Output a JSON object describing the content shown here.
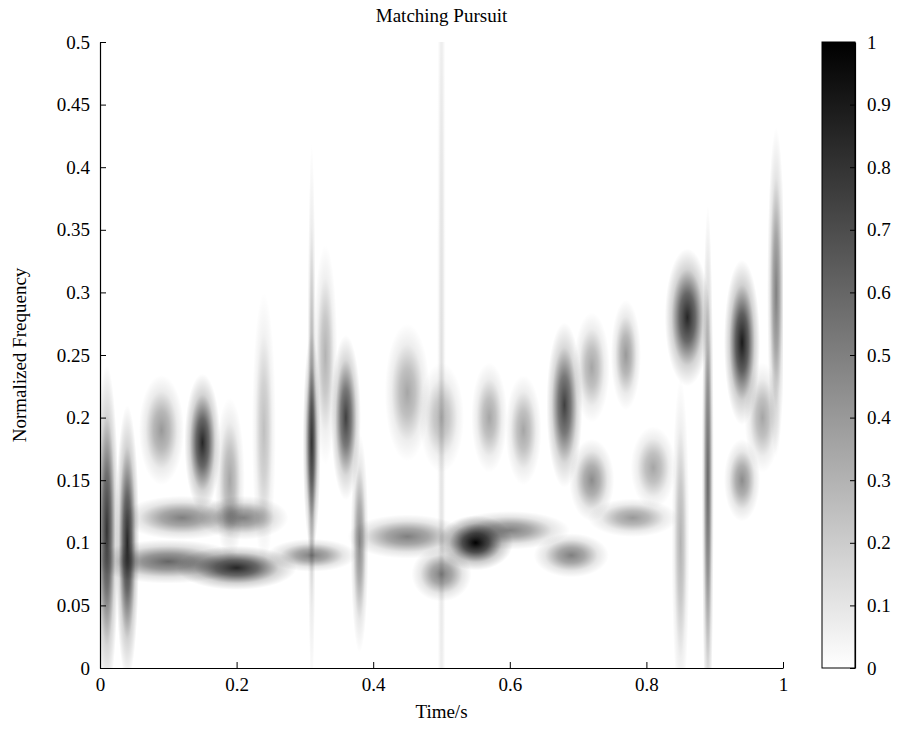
{
  "chart_data": {
    "type": "time_frequency",
    "title": "Matching Pursuit",
    "x_label": "Time/s",
    "y_label": "Normalized Frequency",
    "xlim": [
      0,
      1
    ],
    "xticks": [
      0,
      0.2,
      0.4,
      0.6,
      0.8,
      1
    ],
    "ylim": [
      0,
      0.5
    ],
    "yticks": [
      0,
      0.05,
      0.1,
      0.15,
      0.2,
      0.25,
      0.3,
      0.35,
      0.4,
      0.45,
      0.5
    ],
    "atoms": {
      "time": [
        0.01,
        0.04,
        0.1,
        0.2,
        0.12,
        0.21,
        0.09,
        0.15,
        0.19,
        0.24,
        0.31,
        0.31,
        0.31,
        0.36,
        0.33,
        0.38,
        0.45,
        0.5,
        0.5,
        0.45,
        0.55,
        0.6,
        0.57,
        0.62,
        0.68,
        0.69,
        0.72,
        0.72,
        0.78,
        0.77,
        0.81,
        0.86,
        0.85,
        0.89,
        0.94,
        0.94,
        0.97,
        0.99,
        0.5
      ],
      "frequency": [
        0.11,
        0.1,
        0.085,
        0.08,
        0.12,
        0.12,
        0.19,
        0.18,
        0.15,
        0.19,
        0.18,
        0.2,
        0.09,
        0.2,
        0.25,
        0.1,
        0.22,
        0.2,
        0.075,
        0.105,
        0.1,
        0.11,
        0.2,
        0.19,
        0.21,
        0.09,
        0.24,
        0.15,
        0.12,
        0.25,
        0.16,
        0.28,
        0.1,
        0.15,
        0.26,
        0.15,
        0.2,
        0.3,
        0.25
      ],
      "amplitude": [
        0.8,
        0.85,
        0.6,
        0.85,
        0.5,
        0.5,
        0.4,
        0.85,
        0.35,
        0.25,
        0.7,
        0.35,
        0.5,
        0.75,
        0.3,
        0.45,
        0.35,
        0.3,
        0.5,
        0.5,
        1,
        0.5,
        0.35,
        0.35,
        0.75,
        0.5,
        0.35,
        0.45,
        0.4,
        0.4,
        0.35,
        0.85,
        0.3,
        0.6,
        0.9,
        0.45,
        0.35,
        0.5,
        0.12
      ],
      "time_width": [
        0.008,
        0.008,
        0.05,
        0.04,
        0.04,
        0.03,
        0.015,
        0.012,
        0.01,
        0.008,
        0.006,
        0.003,
        0.03,
        0.01,
        0.008,
        0.006,
        0.015,
        0.015,
        0.02,
        0.04,
        0.025,
        0.04,
        0.012,
        0.012,
        0.012,
        0.025,
        0.012,
        0.015,
        0.03,
        0.01,
        0.015,
        0.015,
        0.006,
        0.004,
        0.012,
        0.012,
        0.012,
        0.006,
        0.003
      ],
      "frequency_width": [
        0.06,
        0.05,
        0.008,
        0.008,
        0.008,
        0.008,
        0.02,
        0.025,
        0.03,
        0.05,
        0.04,
        0.1,
        0.006,
        0.03,
        0.04,
        0.04,
        0.025,
        0.02,
        0.01,
        0.008,
        0.01,
        0.007,
        0.02,
        0.02,
        0.03,
        0.008,
        0.02,
        0.015,
        0.007,
        0.02,
        0.015,
        0.025,
        0.06,
        0.1,
        0.03,
        0.015,
        0.02,
        0.06,
        0.25
      ]
    },
    "colorbar": {
      "range": [
        0,
        1
      ],
      "ticks": [
        0,
        0.1,
        0.2,
        0.3,
        0.4,
        0.5,
        0.6,
        0.7,
        0.8,
        0.9,
        1
      ],
      "colors": [
        "#ffffff",
        "#000000"
      ]
    }
  }
}
